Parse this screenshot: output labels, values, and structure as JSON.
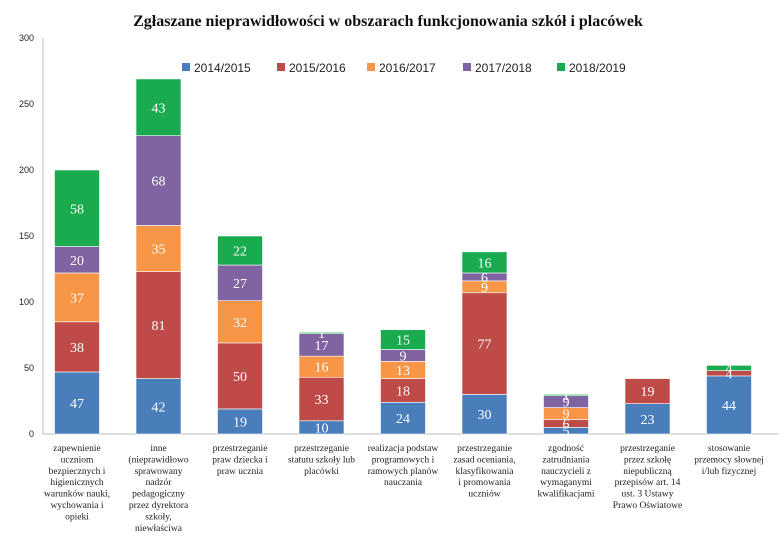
{
  "chart_data": {
    "type": "bar",
    "stacked": true,
    "title": "Zgłaszane nieprawidłowości w obszarach funkcjonowania szkół i placówek",
    "xlabel": "",
    "ylabel": "",
    "ylim": [
      0,
      300
    ],
    "yticks": [
      0,
      50,
      100,
      150,
      200,
      250,
      300
    ],
    "yticklabels": [
      "0",
      "50",
      "100",
      "150",
      "200",
      "250",
      "300"
    ],
    "legend_position": "top",
    "categories": [
      [
        "zapewnienie",
        "uczniom",
        "bezpiecznych i",
        "higienicznych",
        "warunków nauki,",
        "wychowania i",
        "opieki"
      ],
      [
        "inne",
        "(nieprawidłowo",
        "sprawowany",
        "nadzór",
        "pedagogiczny",
        "przez dyrektora",
        "szkoły,",
        "niewłaściwa"
      ],
      [
        "przestrzeganie",
        "praw dziecka i",
        "praw ucznia"
      ],
      [
        "przestrzeganie",
        "statutu szkoły lub",
        "placówki"
      ],
      [
        "realizacja podstaw",
        "programowych i",
        "ramowych planów",
        "nauczania"
      ],
      [
        "przestrzeganie",
        "zasad oceniania,",
        "klasyfikowania",
        "i promowania",
        "uczniów"
      ],
      [
        "zgodność",
        "zatrudniania",
        "nauczycieli z",
        "wymaganymi",
        "kwalifikacjami"
      ],
      [
        "przestrzeganie",
        "przez szkołę",
        "niepubliczną",
        "przepisów art. 14",
        "ust. 3 Ustawy",
        "Prawo Oświatowe"
      ],
      [
        "stosowanie",
        "przemocy słownej",
        "i/lub fizycznej"
      ]
    ],
    "series": [
      {
        "name": "2014/2015",
        "color": "#4a7ebb",
        "values": [
          47,
          42,
          19,
          10,
          24,
          30,
          5,
          23,
          44
        ]
      },
      {
        "name": "2015/2016",
        "color": "#be4b48",
        "values": [
          38,
          81,
          50,
          33,
          18,
          77,
          6,
          19,
          4
        ]
      },
      {
        "name": "2016/2017",
        "color": "#f79646",
        "values": [
          37,
          35,
          32,
          16,
          13,
          9,
          9,
          0,
          0
        ]
      },
      {
        "name": "2017/2018",
        "color": "#8064a2",
        "values": [
          20,
          68,
          27,
          17,
          9,
          6,
          9,
          0,
          0
        ]
      },
      {
        "name": "2018/2019",
        "color": "#1aab4f",
        "values": [
          58,
          43,
          22,
          1,
          15,
          16,
          1,
          0,
          4
        ]
      }
    ],
    "data_labels": [
      [
        "47",
        "38",
        "37",
        "20",
        "58"
      ],
      [
        "42",
        "81",
        "35",
        "68",
        "43"
      ],
      [
        "19",
        "50",
        "32",
        "27",
        "22"
      ],
      [
        "10",
        "33",
        "16",
        "17",
        "1"
      ],
      [
        "24",
        "18",
        "13",
        "9",
        "15"
      ],
      [
        "30",
        "77",
        "9",
        "6",
        "16"
      ],
      [
        "5",
        "6",
        "9",
        "9",
        "1"
      ],
      [
        "23",
        "19",
        "",
        "",
        ""
      ],
      [
        "44",
        "4",
        "",
        "",
        "4"
      ]
    ]
  }
}
